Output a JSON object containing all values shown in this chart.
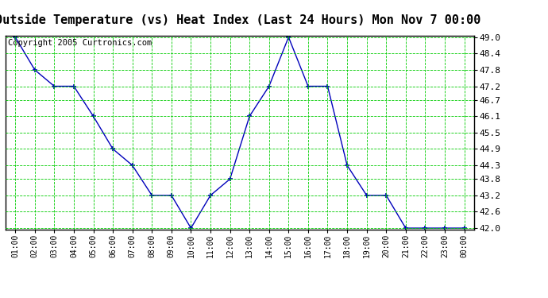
{
  "title": "Outside Temperature (vs) Heat Index (Last 24 Hours) Mon Nov 7 00:00",
  "copyright": "Copyright 2005 Curtronics.com",
  "x_labels": [
    "01:00",
    "02:00",
    "03:00",
    "04:00",
    "05:00",
    "06:00",
    "07:00",
    "08:00",
    "09:00",
    "10:00",
    "11:00",
    "12:00",
    "13:00",
    "14:00",
    "15:00",
    "16:00",
    "17:00",
    "18:00",
    "19:00",
    "20:00",
    "21:00",
    "22:00",
    "23:00",
    "00:00"
  ],
  "y_values": [
    49.0,
    47.8,
    47.2,
    47.2,
    46.1,
    44.9,
    44.3,
    43.2,
    43.2,
    42.0,
    43.2,
    43.8,
    46.1,
    47.2,
    49.0,
    47.2,
    47.2,
    44.3,
    43.2,
    43.2,
    42.0,
    42.0,
    42.0,
    42.0
  ],
  "y_min": 42.0,
  "y_max": 49.0,
  "y_ticks": [
    42.0,
    42.6,
    43.2,
    43.8,
    44.3,
    44.9,
    45.5,
    46.1,
    46.7,
    47.2,
    47.8,
    48.4,
    49.0
  ],
  "line_color": "#0000bb",
  "marker_color": "#0000bb",
  "bg_color": "#ffffff",
  "plot_bg_color": "#ffffff",
  "grid_color": "#00cc00",
  "border_color": "#000000",
  "title_fontsize": 11,
  "copyright_fontsize": 7.5,
  "tick_fontsize": 8,
  "x_tick_fontsize": 7
}
